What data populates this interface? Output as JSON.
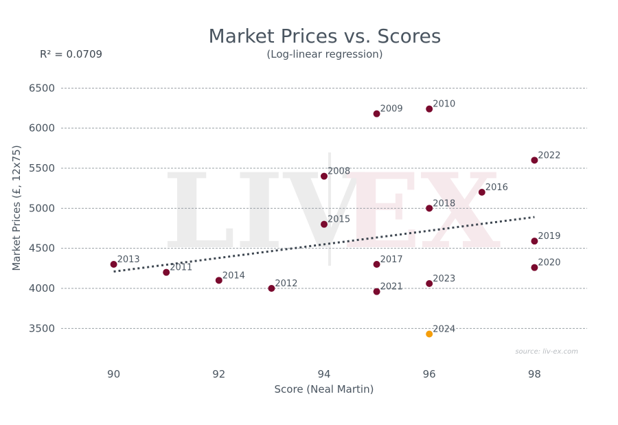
{
  "chart_data": {
    "type": "scatter",
    "title": "Market Prices vs. Scores",
    "subtitle": "(Log-linear regression)",
    "annotation": "R² = 0.0709",
    "xlabel": "Score (Neal Martin)",
    "ylabel": "Market Prices (£, 12x75)",
    "xlim": [
      89,
      99
    ],
    "ylim": [
      3100,
      6700
    ],
    "xticks": [
      90,
      92,
      94,
      96,
      98
    ],
    "yticks": [
      3500,
      4000,
      4500,
      5000,
      5500,
      6000,
      6500
    ],
    "grid": "horizontal dashed",
    "colors": {
      "point": "#7a0a2e",
      "highlight": "#f59e0b",
      "trend": "#3d4650",
      "grid": "#9aa0a6",
      "text": "#4a5560"
    },
    "points": [
      {
        "label": "2013",
        "x": 90,
        "y": 4300
      },
      {
        "label": "2011",
        "x": 91,
        "y": 4200
      },
      {
        "label": "2014",
        "x": 92,
        "y": 4100
      },
      {
        "label": "2012",
        "x": 93,
        "y": 4000
      },
      {
        "label": "2008",
        "x": 94,
        "y": 5400
      },
      {
        "label": "2015",
        "x": 94,
        "y": 4800
      },
      {
        "label": "2009",
        "x": 95,
        "y": 6180
      },
      {
        "label": "2017",
        "x": 95,
        "y": 4300
      },
      {
        "label": "2021",
        "x": 95,
        "y": 3960
      },
      {
        "label": "2010",
        "x": 96,
        "y": 6240
      },
      {
        "label": "2018",
        "x": 96,
        "y": 5000
      },
      {
        "label": "2023",
        "x": 96,
        "y": 4060
      },
      {
        "label": "2024",
        "x": 96,
        "y": 3430,
        "highlight": true
      },
      {
        "label": "2016",
        "x": 97,
        "y": 5200
      },
      {
        "label": "2022",
        "x": 98,
        "y": 5600
      },
      {
        "label": "2019",
        "x": 98,
        "y": 4590
      },
      {
        "label": "2020",
        "x": 98,
        "y": 4260
      }
    ],
    "trendline": {
      "x": [
        90,
        98
      ],
      "y": [
        4210,
        4890
      ]
    },
    "source": "source: liv-ex.com",
    "watermark": [
      "LIV",
      "EX"
    ]
  }
}
